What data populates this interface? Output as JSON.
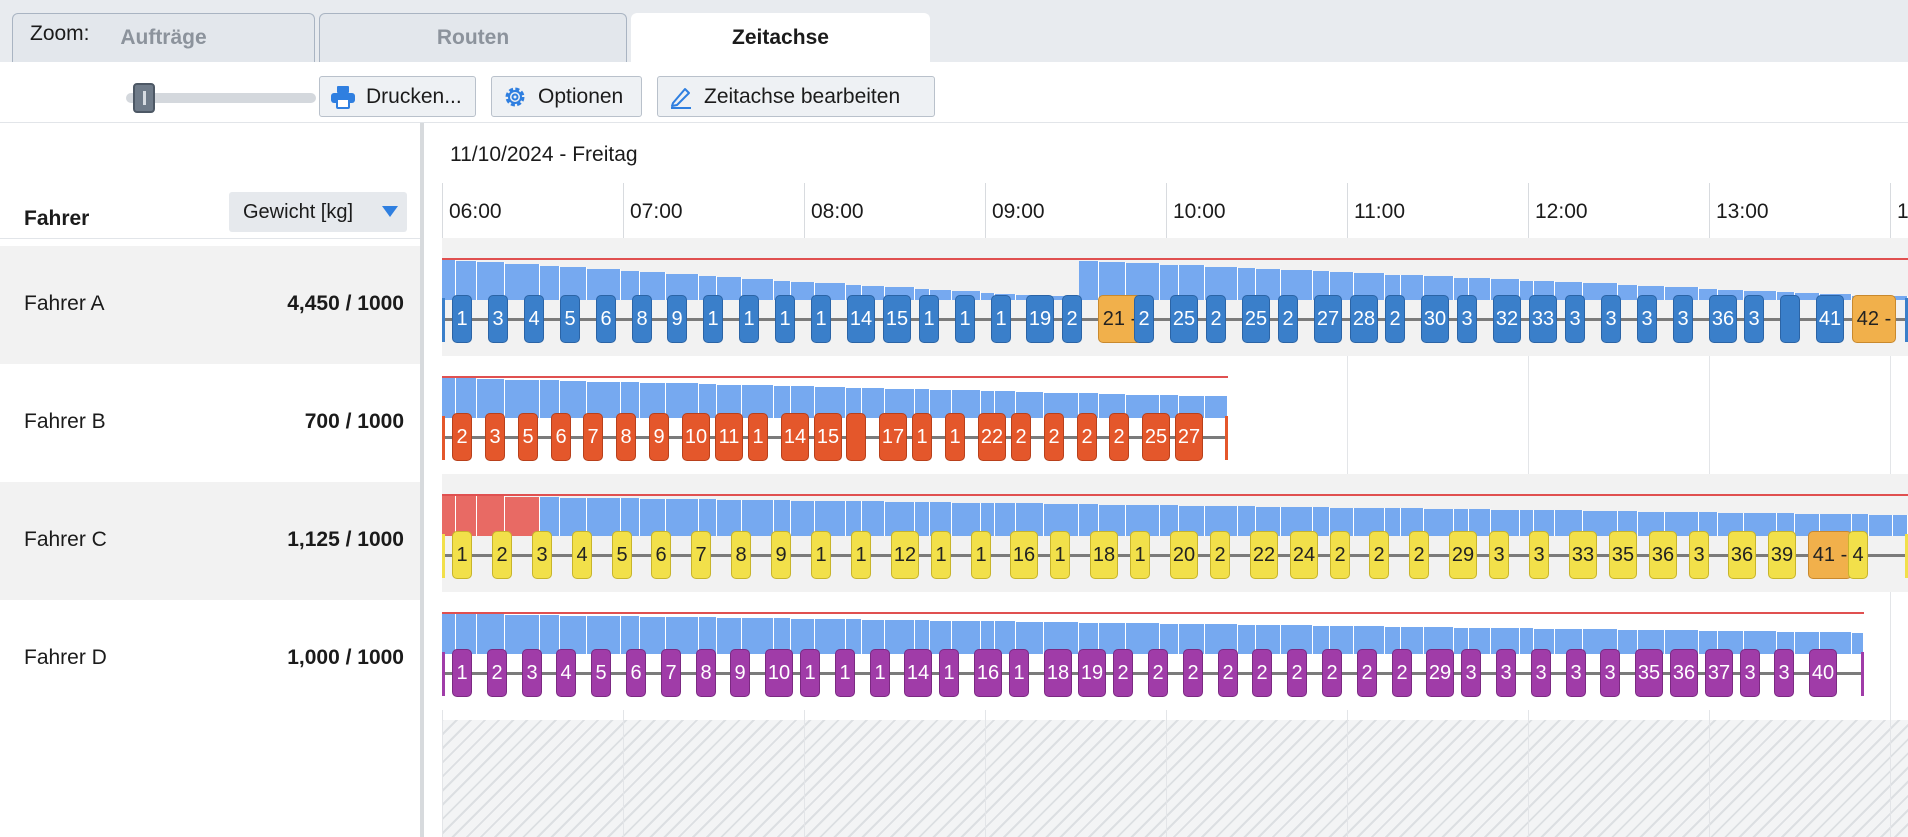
{
  "tabs": [
    {
      "label": "Aufträge",
      "active": false
    },
    {
      "label": "Routen",
      "active": false
    },
    {
      "label": "Zeitachse",
      "active": true
    }
  ],
  "toolbar": {
    "zoom_label": "Zoom:",
    "print_label": "Drucken...",
    "options_label": "Optionen",
    "edit_label": "Zeitachse bearbeiten"
  },
  "left_panel": {
    "header": "Fahrer",
    "measure_select": "Gewicht [kg]"
  },
  "timeline": {
    "date": "11/10/2024 - Freitag",
    "hours": [
      "06:00",
      "07:00",
      "08:00",
      "09:00",
      "10:00",
      "11:00",
      "12:00",
      "13:00",
      "1"
    ]
  },
  "colors": {
    "blue_stop": "#3a7fca",
    "red_stop": "#e4572b",
    "yellow_stop": "#f2e04a",
    "purple_stop": "#a03ca8",
    "highlight_stop": "#f1b04b",
    "load_bar": "#76a9f0",
    "overload_bar": "#e86a64",
    "capacity_line": "#e05050"
  },
  "drivers": [
    {
      "name": "Fahrer A",
      "load": "4,450 / 1000",
      "stops": [
        "1",
        "3",
        "4",
        "5",
        "6",
        "8",
        "9",
        "1",
        "1",
        "1",
        "1",
        "14",
        "15",
        "1",
        "1",
        "1",
        "19",
        "2",
        "21 -",
        "2",
        "25",
        "2",
        "25",
        "2",
        "27",
        "28",
        "2",
        "30",
        "3",
        "32",
        "33",
        "3",
        "3",
        "3",
        "3",
        "36",
        "3",
        "",
        "41",
        "42 -"
      ]
    },
    {
      "name": "Fahrer B",
      "load": "700 / 1000",
      "stops": [
        "2",
        "3",
        "5",
        "6",
        "7",
        "8",
        "9",
        "10",
        "11",
        "1",
        "14",
        "15",
        "",
        "17",
        "1",
        "1",
        "22",
        "2",
        "2",
        "2",
        "2",
        "25",
        "27"
      ]
    },
    {
      "name": "Fahrer C",
      "load": "1,125 / 1000",
      "stops": [
        "1",
        "2",
        "3",
        "4",
        "5",
        "6",
        "7",
        "8",
        "9",
        "1",
        "1",
        "12",
        "1",
        "1",
        "16",
        "1",
        "18",
        "1",
        "20",
        "2",
        "22",
        "24",
        "2",
        "2",
        "2",
        "29",
        "3",
        "3",
        "33",
        "35",
        "36",
        "3",
        "36",
        "39",
        "41 -",
        "4"
      ]
    },
    {
      "name": "Fahrer D",
      "load": "1,000 / 1000",
      "stops": [
        "1",
        "2",
        "3",
        "4",
        "5",
        "6",
        "7",
        "8",
        "9",
        "10",
        "1",
        "1",
        "1",
        "14",
        "1",
        "16",
        "1",
        "18",
        "19",
        "2",
        "2",
        "2",
        "2",
        "2",
        "2",
        "2",
        "2",
        "2",
        "29",
        "3",
        "3",
        "3",
        "3",
        "3",
        "35",
        "36",
        "37",
        "3",
        "3",
        "40"
      ]
    }
  ]
}
